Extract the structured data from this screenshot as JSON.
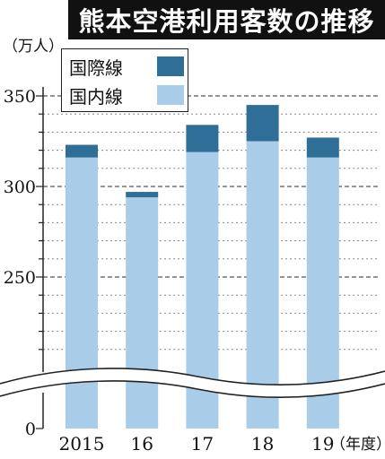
{
  "chart_data": {
    "type": "bar",
    "stacked": true,
    "title": "熊本空港利用客数の推移",
    "unit": "（万人）",
    "xlabel_suffix": "（年度）",
    "categories": [
      "2015",
      "16",
      "17",
      "18",
      "19"
    ],
    "series": [
      {
        "name": "国内線",
        "values": [
          316,
          294,
          319,
          325,
          316
        ],
        "color": "#a9cce8"
      },
      {
        "name": "国際線",
        "values": [
          7,
          3,
          15,
          20,
          11
        ],
        "color": "#2f6e96"
      }
    ],
    "yticks": [
      0,
      250,
      300,
      350
    ],
    "ylim": [
      0,
      355
    ],
    "axis_break": true,
    "grid": true,
    "legend_position": "top-left"
  }
}
